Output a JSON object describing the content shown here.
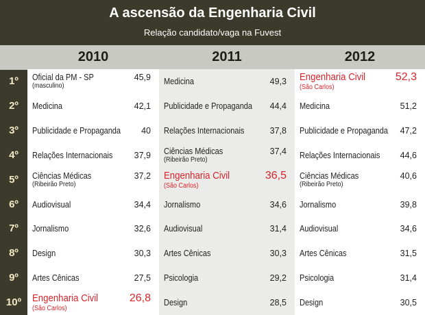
{
  "header": {
    "title": "A ascensão da Engenharia Civil",
    "subtitle": "Relação candidato/vaga na Fuvest"
  },
  "table": {
    "ranks": [
      "1º",
      "2º",
      "3º",
      "4º",
      "5º",
      "6º",
      "7º",
      "8º",
      "9º",
      "10º"
    ],
    "columns": [
      {
        "year": "2010",
        "rows": [
          {
            "name": "Oficial da PM - SP",
            "note": "(masculino)",
            "value": "45,9"
          },
          {
            "name": "Medicina",
            "value": "42,1"
          },
          {
            "name": "Publicidade e Propaganda",
            "value": "40"
          },
          {
            "name": "Relações Internacionais",
            "value": "37,9"
          },
          {
            "name": "Ciências Médicas",
            "note": "(Ribeirão Preto)",
            "value": "37,2"
          },
          {
            "name": "Audiovisual",
            "value": "34,4"
          },
          {
            "name": "Jornalismo",
            "value": "32,6"
          },
          {
            "name": "Design",
            "value": "30,3"
          },
          {
            "name": "Artes Cênicas",
            "value": "27,5"
          },
          {
            "name": "Engenharia Civil",
            "note": "(São Carlos)",
            "value": "26,8",
            "color": "#d8232a"
          }
        ]
      },
      {
        "year": "2011",
        "rows": [
          {
            "name": "Medicina",
            "value": "49,3"
          },
          {
            "name": "Publicidade e Propaganda",
            "value": "44,4"
          },
          {
            "name": "Relações Internacionais",
            "value": "37,8"
          },
          {
            "name": "Ciências Médicas",
            "note": "(Ribeirão Preto)",
            "value": "37,4"
          },
          {
            "name": "Engenharia Civil",
            "note": "(São Carlos)",
            "value": "36,5",
            "color": "#d8232a"
          },
          {
            "name": "Jornalismo",
            "value": "34,6"
          },
          {
            "name": "Audiovisual",
            "value": "31,4"
          },
          {
            "name": "Artes Cênicas",
            "value": "30,3"
          },
          {
            "name": "Psicologia",
            "value": "29,2"
          },
          {
            "name": "Design",
            "value": "28,5"
          }
        ]
      },
      {
        "year": "2012",
        "rows": [
          {
            "name": "Engenharia Civil",
            "note": "(São Carlos)",
            "value": "52,3",
            "color": "#d8232a"
          },
          {
            "name": "Medicina",
            "value": "51,2"
          },
          {
            "name": "Publicidade e Propaganda",
            "value": "47,2"
          },
          {
            "name": "Relações Internacionais",
            "value": "44,6"
          },
          {
            "name": "Ciências Médicas",
            "note": "(Ribeirão Preto)",
            "value": "40,6"
          },
          {
            "name": "Jornalismo",
            "value": "39,8"
          },
          {
            "name": "Audiovisual",
            "value": "34,6"
          },
          {
            "name": "Artes Cênicas",
            "value": "31,5"
          },
          {
            "name": "Psicologia",
            "value": "31,4"
          },
          {
            "name": "Design",
            "value": "30,5"
          }
        ]
      }
    ]
  }
}
